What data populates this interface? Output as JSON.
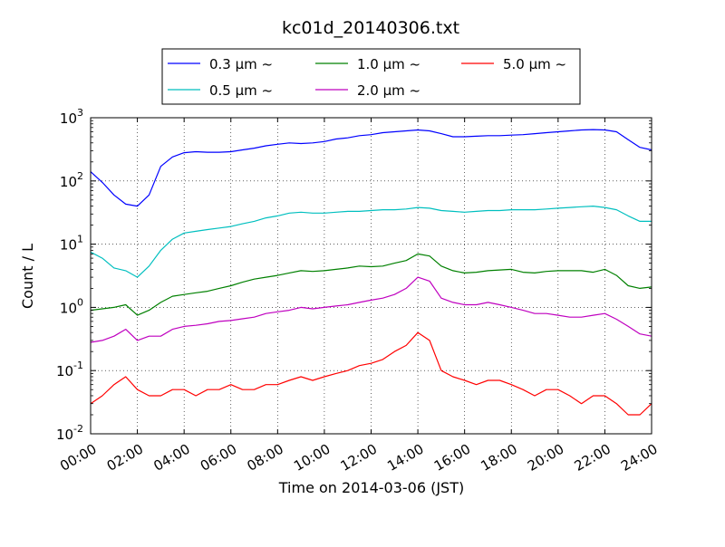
{
  "chart_data": {
    "type": "line",
    "title": "kc01d_20140306.txt",
    "xlabel": "Time on 2014-03-06 (JST)",
    "ylabel": "Count / L",
    "yscale": "log",
    "xlim": [
      0,
      24
    ],
    "ylim": [
      0.01,
      1000
    ],
    "grid": true,
    "legend_position": "top-center",
    "x_tick_labels": [
      "00:00",
      "02:00",
      "04:00",
      "06:00",
      "08:00",
      "10:00",
      "12:00",
      "14:00",
      "16:00",
      "18:00",
      "20:00",
      "22:00",
      "24:00"
    ],
    "y_tick_labels": [
      {
        "base": "10",
        "exp": "-2"
      },
      {
        "base": "10",
        "exp": "-1"
      },
      {
        "base": "10",
        "exp": "0"
      },
      {
        "base": "10",
        "exp": "1"
      },
      {
        "base": "10",
        "exp": "2"
      },
      {
        "base": "10",
        "exp": "3"
      }
    ],
    "x": [
      0,
      0.5,
      1,
      1.5,
      2,
      2.5,
      3,
      3.5,
      4,
      4.5,
      5,
      5.5,
      6,
      6.5,
      7,
      7.5,
      8,
      8.5,
      9,
      9.5,
      10,
      10.5,
      11,
      11.5,
      12,
      12.5,
      13,
      13.5,
      14,
      14.5,
      15,
      15.5,
      16,
      16.5,
      17,
      17.5,
      18,
      18.5,
      19,
      19.5,
      20,
      20.5,
      21,
      21.5,
      22,
      22.5,
      23,
      23.5,
      24
    ],
    "series": [
      {
        "name": "0.3 μm ~",
        "color": "#0000ff",
        "values": [
          140,
          95,
          60,
          43,
          40,
          60,
          170,
          240,
          280,
          290,
          285,
          285,
          290,
          310,
          330,
          360,
          380,
          400,
          390,
          400,
          420,
          460,
          480,
          520,
          540,
          580,
          600,
          620,
          640,
          620,
          560,
          500,
          500,
          510,
          520,
          520,
          530,
          540,
          560,
          580,
          600,
          620,
          640,
          650,
          640,
          600,
          450,
          340,
          310
        ]
      },
      {
        "name": "0.5 μm ~",
        "color": "#00bfbf",
        "values": [
          7.5,
          6,
          4.2,
          3.8,
          3,
          4.5,
          8,
          12,
          15,
          16,
          17,
          18,
          19,
          21,
          23,
          26,
          28,
          31,
          32,
          31,
          31,
          32,
          33,
          33,
          34,
          35,
          35,
          36,
          38,
          37,
          34,
          33,
          32,
          33,
          34,
          34,
          35,
          35,
          35,
          36,
          37,
          38,
          39,
          40,
          38,
          35,
          28,
          23,
          23
        ]
      },
      {
        "name": "1.0 μm ~",
        "color": "#008000",
        "values": [
          0.9,
          0.95,
          1,
          1.1,
          0.75,
          0.9,
          1.2,
          1.5,
          1.6,
          1.7,
          1.8,
          2,
          2.2,
          2.5,
          2.8,
          3,
          3.2,
          3.5,
          3.8,
          3.7,
          3.8,
          4,
          4.2,
          4.5,
          4.4,
          4.5,
          5,
          5.5,
          7,
          6.5,
          4.5,
          3.8,
          3.5,
          3.6,
          3.8,
          3.9,
          4,
          3.6,
          3.5,
          3.7,
          3.8,
          3.8,
          3.8,
          3.6,
          4,
          3.2,
          2.2,
          2,
          2.1
        ]
      },
      {
        "name": "2.0 μm ~",
        "color": "#bf00bf",
        "values": [
          0.28,
          0.3,
          0.35,
          0.45,
          0.3,
          0.35,
          0.35,
          0.45,
          0.5,
          0.52,
          0.55,
          0.6,
          0.62,
          0.66,
          0.7,
          0.8,
          0.85,
          0.9,
          1,
          0.95,
          1,
          1.05,
          1.1,
          1.2,
          1.3,
          1.4,
          1.6,
          2,
          3,
          2.6,
          1.4,
          1.2,
          1.1,
          1.1,
          1.2,
          1.1,
          1,
          0.9,
          0.8,
          0.8,
          0.75,
          0.7,
          0.7,
          0.75,
          0.8,
          0.65,
          0.5,
          0.38,
          0.35
        ]
      },
      {
        "name": "5.0 μm ~",
        "color": "#ff0000",
        "values": [
          0.03,
          0.04,
          0.06,
          0.08,
          0.05,
          0.04,
          0.04,
          0.05,
          0.05,
          0.04,
          0.05,
          0.05,
          0.06,
          0.05,
          0.05,
          0.06,
          0.06,
          0.07,
          0.08,
          0.07,
          0.08,
          0.09,
          0.1,
          0.12,
          0.13,
          0.15,
          0.2,
          0.25,
          0.4,
          0.3,
          0.1,
          0.08,
          0.07,
          0.06,
          0.07,
          0.07,
          0.06,
          0.05,
          0.04,
          0.05,
          0.05,
          0.04,
          0.03,
          0.04,
          0.04,
          0.03,
          0.02,
          0.02,
          0.03
        ]
      }
    ]
  }
}
